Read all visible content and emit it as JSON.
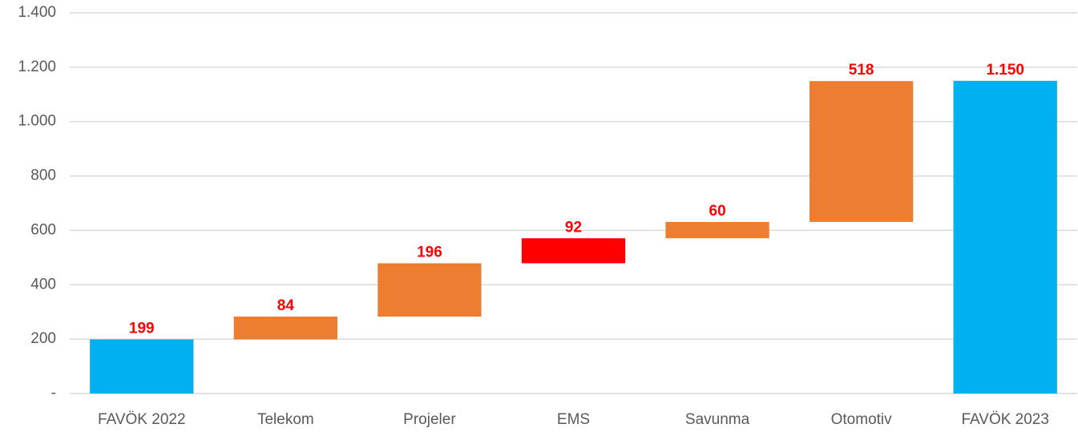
{
  "chart_data": {
    "type": "waterfall",
    "categories": [
      "FAVÖK 2022",
      "Telekom",
      "Projeler",
      "EMS",
      "Savunma",
      "Otomotiv",
      "FAVÖK 2023"
    ],
    "values": [
      199,
      84,
      196,
      92,
      60,
      518,
      1150
    ],
    "value_labels": [
      "199",
      "84",
      "196",
      "92",
      "60",
      "518",
      "1.150"
    ],
    "totals": [
      0,
      6
    ],
    "colors": [
      "#00b0f0",
      "#ed7d31",
      "#ed7d31",
      "#ff0000",
      "#ed7d31",
      "#ed7d31",
      "#00b0f0"
    ],
    "label_color": "#ff0000",
    "ylim": [
      0,
      1400
    ],
    "yticks": [
      {
        "value": 0,
        "label": "-"
      },
      200,
      400,
      600,
      800,
      {
        "value": 1000,
        "label": "1.000"
      },
      {
        "value": 1200,
        "label": "1.200"
      },
      {
        "value": 1400,
        "label": "1.400"
      }
    ],
    "grid": true
  }
}
